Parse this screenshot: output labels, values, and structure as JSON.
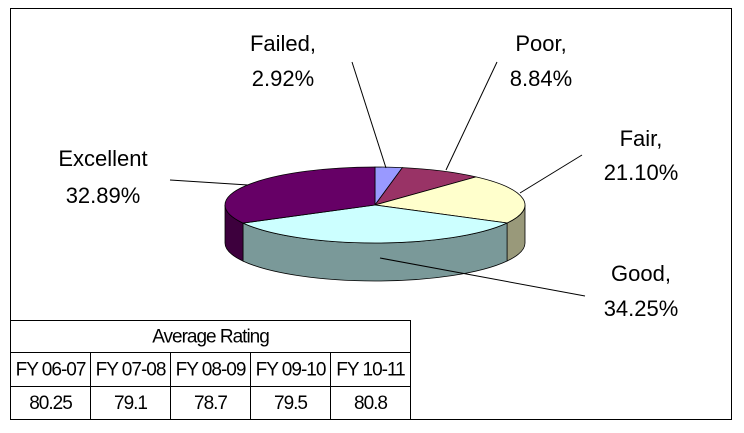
{
  "chart_data": {
    "type": "pie",
    "categories": [
      "Failed,",
      "Poor,",
      "Fair,",
      "Good,",
      "Excellent"
    ],
    "values": [
      2.92,
      8.84,
      21.1,
      34.25,
      32.89
    ],
    "value_labels": [
      "2.92%",
      "8.84%",
      "21.10%",
      "34.25%",
      "32.89%"
    ],
    "colors": [
      "#9999ff",
      "#993366",
      "#ffffcc",
      "#ccffff",
      "#660066"
    ]
  },
  "table": {
    "title": "Average Rating",
    "headers": [
      "FY 06-07",
      "FY 07-08",
      "FY 08-09",
      "FY 09-10",
      "FY 10-11"
    ],
    "values": [
      80.25,
      79.1,
      78.7,
      79.5,
      80.8
    ]
  }
}
